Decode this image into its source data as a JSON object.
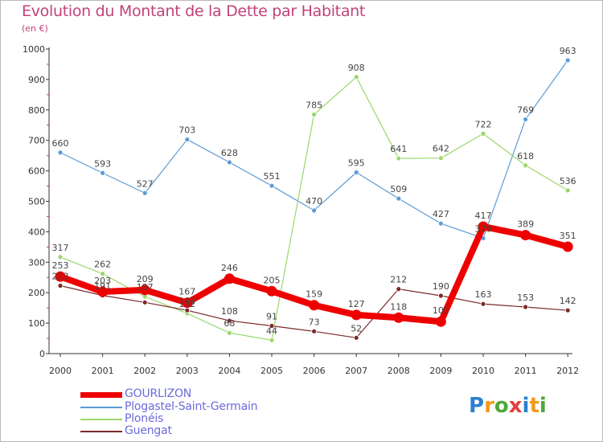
{
  "header": {
    "title": "Evolution du Montant de la Dette par Habitant",
    "subtitle": "(en €)"
  },
  "logo": {
    "text": "Proxiti",
    "letters": [
      "P",
      "r",
      "o",
      "x",
      "i",
      "t",
      "i"
    ],
    "colors": [
      "#2c7fd0",
      "#f29a1c",
      "#4ea83a",
      "#e43d3d",
      "#2c7fd0",
      "#f29a1c",
      "#4ea83a"
    ]
  },
  "chart_data": {
    "type": "line",
    "title": "Evolution du Montant de la Dette par Habitant",
    "subtitle": "(en €)",
    "xlabel": "",
    "ylabel": "",
    "categories": [
      "2000",
      "2001",
      "2002",
      "2003",
      "2004",
      "2005",
      "2006",
      "2007",
      "2008",
      "2009",
      "2010",
      "2011",
      "2012"
    ],
    "ylim": [
      0,
      1000
    ],
    "yticks": [
      "0",
      "100",
      "200",
      "300",
      "400",
      "500",
      "600",
      "700",
      "800",
      "900",
      "1000"
    ],
    "grid": false,
    "legend": "bottom-left",
    "series": [
      {
        "name": "GOURLIZON",
        "color": "#ee0000",
        "values": [
          253,
          203,
          209,
          167,
          246,
          205,
          159,
          127,
          118,
          105,
          417,
          389,
          351
        ],
        "labels": [
          "253",
          "203",
          "209",
          "167",
          "246",
          "205",
          "159",
          "127",
          "118",
          "105",
          "417",
          "389",
          "351"
        ]
      },
      {
        "name": "Plogastel-Saint-Germain",
        "color": "#5b9bd5",
        "values": [
          660,
          593,
          527,
          703,
          628,
          551,
          470,
          595,
          509,
          427,
          379,
          769,
          963
        ],
        "labels": [
          "660",
          "593",
          "527",
          "703",
          "628",
          "551",
          "470",
          "595",
          "509",
          "427",
          "379",
          "769",
          "963"
        ]
      },
      {
        "name": "Plonéis",
        "color": "#9ad86a",
        "values": [
          317,
          262,
          187,
          132,
          68,
          44,
          785,
          908,
          641,
          642,
          722,
          618,
          536
        ],
        "labels": [
          "317",
          "262",
          "187",
          "132",
          "68",
          "44",
          "785",
          "908",
          "641",
          "642",
          "722",
          "618",
          "536"
        ]
      },
      {
        "name": "Guengat",
        "color": "#7b2a2a",
        "values": [
          223,
          191,
          168,
          142,
          108,
          91,
          73,
          52,
          212,
          190,
          163,
          153,
          142
        ],
        "labels": [
          "223",
          "191",
          "",
          "142",
          "108",
          "91",
          "73",
          "52",
          "212",
          "190",
          "163",
          "153",
          "142"
        ]
      }
    ]
  }
}
